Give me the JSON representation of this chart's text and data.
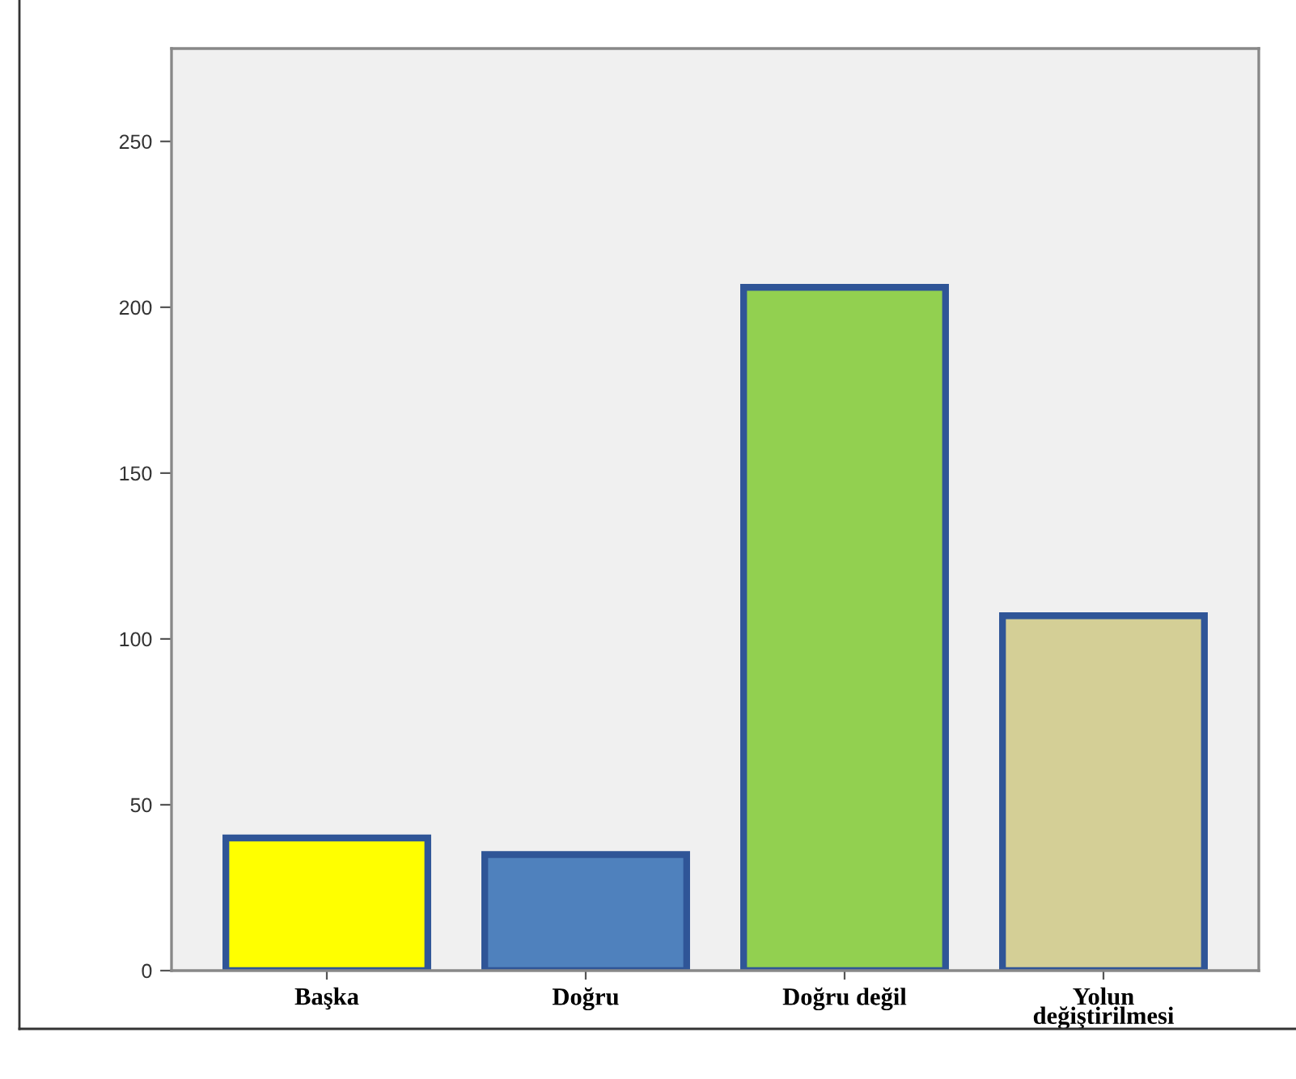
{
  "chart_data": {
    "type": "bar",
    "categories": [
      "Başka",
      "Doğru",
      "Doğru değil",
      "Yolun değiştirilmesi"
    ],
    "values": [
      40,
      35,
      206,
      107
    ],
    "colors": [
      "#ffff00",
      "#4f81bd",
      "#92d050",
      "#d4cf96"
    ],
    "ylim": [
      0,
      278
    ],
    "yticks": [
      0,
      50,
      100,
      150,
      200,
      250
    ],
    "grid": false
  }
}
